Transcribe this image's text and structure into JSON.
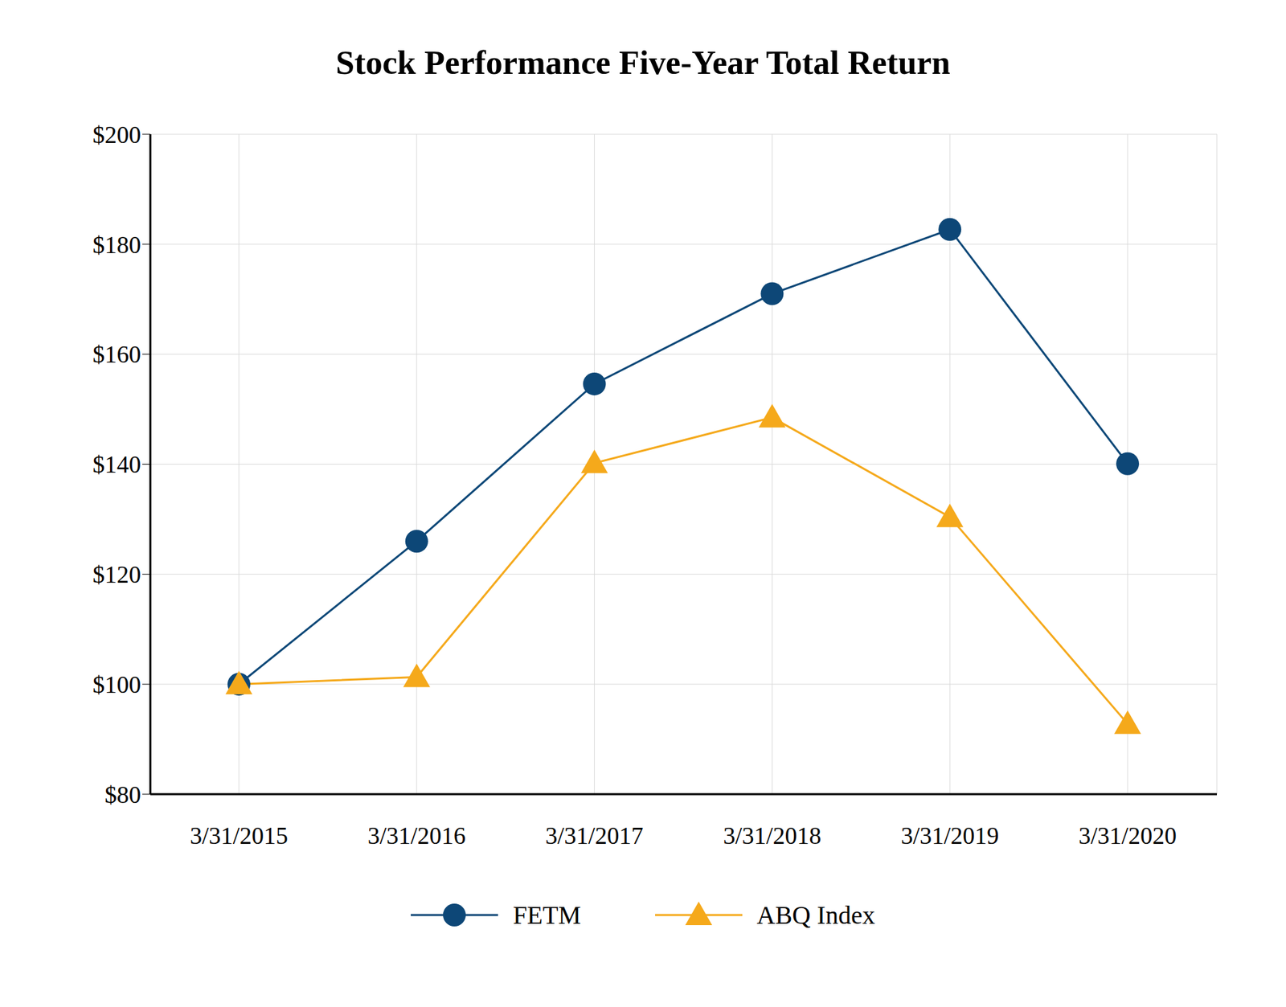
{
  "chart_data": {
    "type": "line",
    "title": "Stock Performance Five-Year Total Return",
    "categories": [
      "3/31/2015",
      "3/31/2016",
      "3/31/2017",
      "3/31/2018",
      "3/31/2019",
      "3/31/2020"
    ],
    "series": [
      {
        "name": "FETM",
        "color": "#0d4777",
        "marker": "circle",
        "values": [
          100,
          126,
          154.6,
          171,
          182.7,
          140.1
        ]
      },
      {
        "name": "ABQ Index",
        "color": "#f5a91b",
        "marker": "triangle",
        "values": [
          100,
          101.3,
          140.2,
          148.5,
          130.4,
          92.8
        ]
      }
    ],
    "ylim": [
      80,
      200
    ],
    "yticks": [
      {
        "value": 80,
        "label": "$80"
      },
      {
        "value": 100,
        "label": "$100"
      },
      {
        "value": 120,
        "label": "$120"
      },
      {
        "value": 140,
        "label": "$140"
      },
      {
        "value": 160,
        "label": "$160"
      },
      {
        "value": 180,
        "label": "$180"
      },
      {
        "value": 200,
        "label": "$200"
      }
    ],
    "grid": true,
    "legend": "bottom"
  }
}
